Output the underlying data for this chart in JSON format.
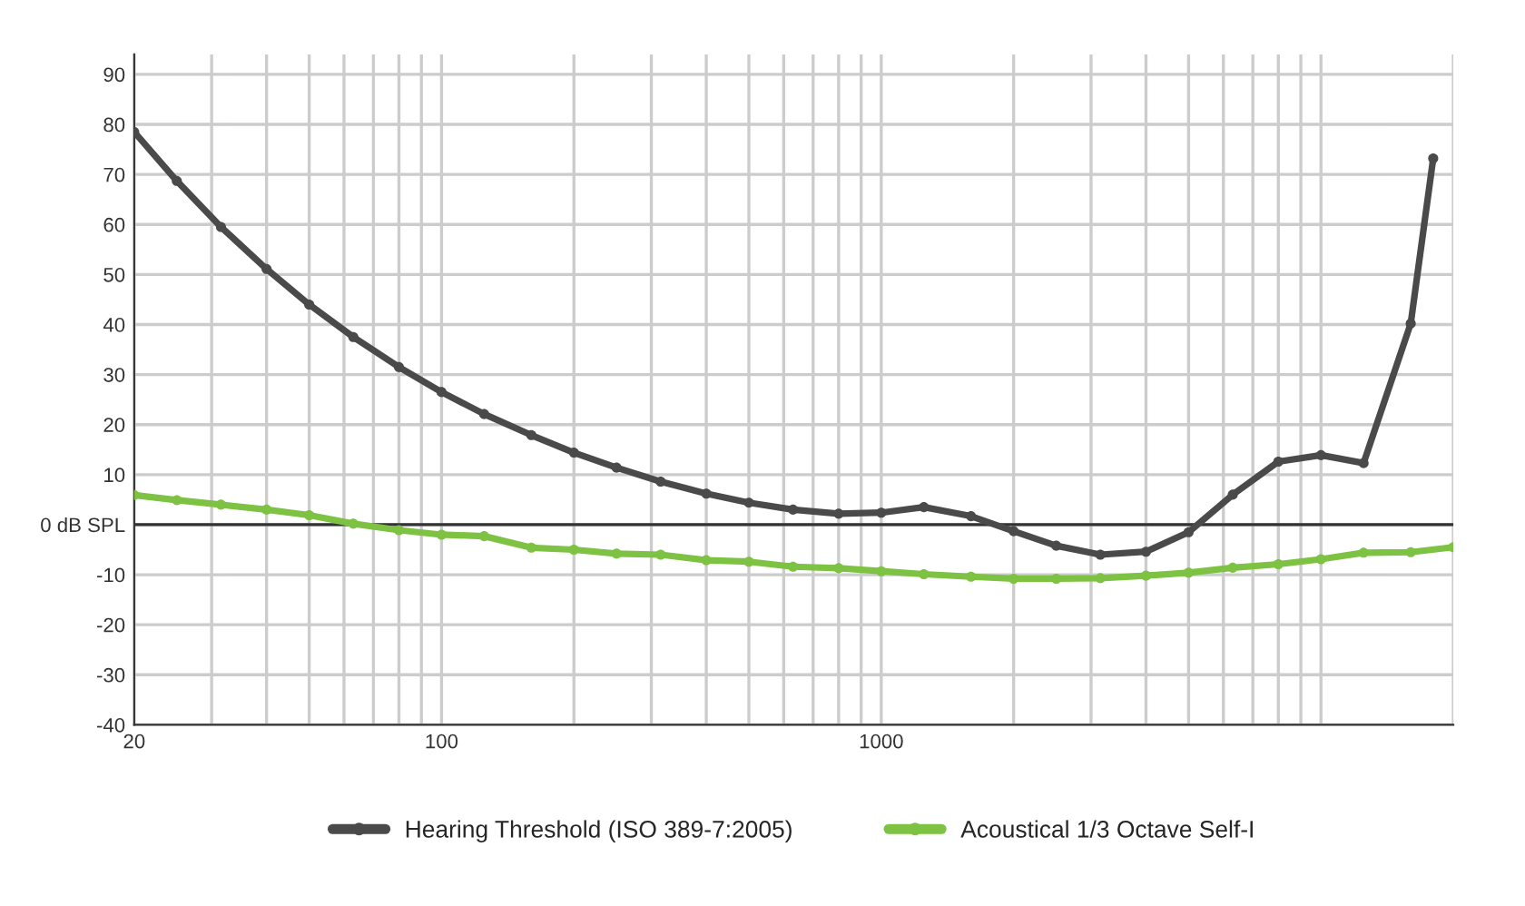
{
  "chart_data": {
    "type": "line",
    "xlim": [
      20,
      20000
    ],
    "ylim": [
      -40,
      94
    ],
    "log": "x",
    "xticks": [
      20,
      {
        "value": 30,
        "label": null
      },
      {
        "value": 40,
        "label": null
      },
      {
        "value": 50,
        "label": null
      },
      {
        "value": 60,
        "label": null
      },
      {
        "value": 70,
        "label": null
      },
      {
        "value": 80,
        "label": null
      },
      {
        "value": 90,
        "label": null
      },
      100,
      {
        "value": 200,
        "label": null
      },
      {
        "value": 300,
        "label": null
      },
      {
        "value": 400,
        "label": null
      },
      {
        "value": 500,
        "label": null
      },
      {
        "value": 600,
        "label": null
      },
      {
        "value": 700,
        "label": null
      },
      {
        "value": 800,
        "label": null
      },
      {
        "value": 900,
        "label": null
      },
      1000,
      {
        "value": 2000,
        "label": null
      },
      {
        "value": 3000,
        "label": null
      },
      {
        "value": 4000,
        "label": null
      },
      {
        "value": 5000,
        "label": null
      },
      {
        "value": 6000,
        "label": null
      },
      {
        "value": 7000,
        "label": null
      },
      {
        "value": 8000,
        "label": null
      },
      {
        "value": 9000,
        "label": null
      },
      {
        "value": 10000,
        "label": null
      },
      {
        "value": 20000,
        "label": null
      }
    ],
    "yticks": [
      -40,
      -30,
      -20,
      -10,
      {
        "value": 0,
        "label": "0 dB SPL"
      },
      10,
      20,
      30,
      40,
      50,
      60,
      70,
      80,
      90
    ],
    "grid": true,
    "legend": "bottom",
    "marker": "circle",
    "line_style": "solid",
    "ref_lines": [
      {
        "axis": "y",
        "value": 0,
        "label": null,
        "color": "#333333"
      }
    ],
    "series": [
      {
        "name": "Hearing Threshold (ISO 389-7:2005)",
        "color": "#4a4a4a",
        "x": [
          20,
          25,
          31.5,
          40,
          50,
          63,
          80,
          100,
          125,
          160,
          200,
          250,
          315,
          400,
          500,
          630,
          800,
          1000,
          1250,
          1600,
          2000,
          2500,
          3150,
          4000,
          5000,
          6300,
          8000,
          10000,
          12500,
          16000,
          18000
        ],
        "values": [
          78.5,
          68.7,
          59.5,
          51.1,
          44.0,
          37.5,
          31.5,
          26.5,
          22.1,
          17.9,
          14.4,
          11.4,
          8.6,
          6.2,
          4.4,
          3.0,
          2.2,
          2.4,
          3.5,
          1.7,
          -1.3,
          -4.2,
          -6.0,
          -5.4,
          -1.5,
          6.0,
          12.6,
          13.9,
          12.3,
          40.2,
          73.2
        ]
      },
      {
        "name": "Acoustical 1/3 Octave Self-I",
        "color": "#7dc242",
        "x": [
          20,
          25,
          31.5,
          40,
          50,
          63,
          80,
          100,
          125,
          160,
          200,
          250,
          315,
          400,
          500,
          630,
          800,
          1000,
          1250,
          1600,
          2000,
          2500,
          3150,
          4000,
          5000,
          6300,
          8000,
          10000,
          12500,
          16000,
          20000
        ],
        "values": [
          5.9,
          4.9,
          4.0,
          3.0,
          1.9,
          0.2,
          -1.1,
          -2.0,
          -2.3,
          -4.6,
          -5.0,
          -5.8,
          -6.0,
          -7.1,
          -7.4,
          -8.4,
          -8.7,
          -9.3,
          -9.9,
          -10.4,
          -10.8,
          -10.8,
          -10.7,
          -10.2,
          -9.6,
          -8.6,
          -7.9,
          -6.9,
          -5.6,
          -5.5,
          -4.5
        ]
      }
    ]
  }
}
